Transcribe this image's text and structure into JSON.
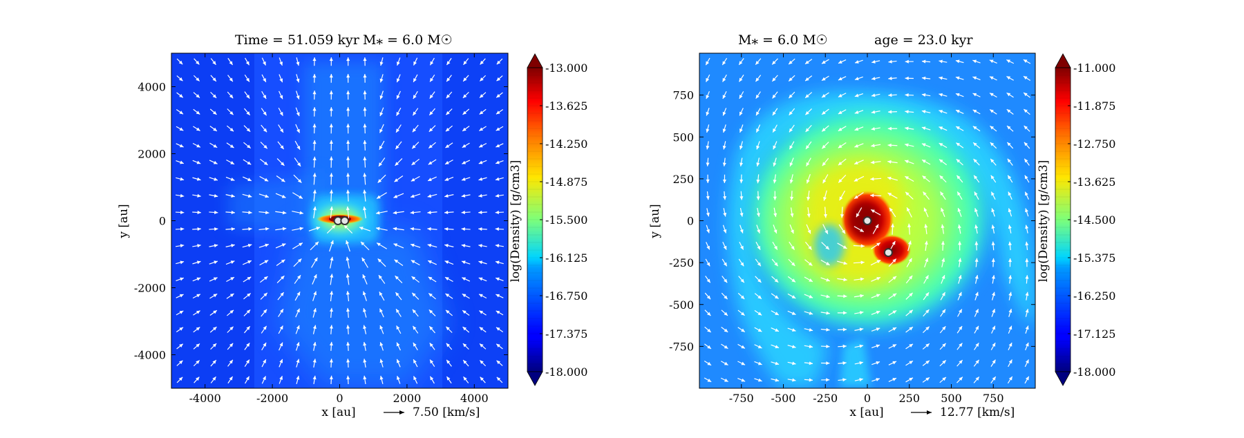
{
  "chart_data": [
    {
      "type": "heatmap",
      "title_left": "Time = 51.059 kyr",
      "title_right": "M$_*$ = 6.0 M$_\\odot$",
      "title_left_text": "Time = 51.059 kyr",
      "title_right_text": "M⁎ = 6.0 M☉",
      "xlabel": "x [au]",
      "ylabel": "y [au]",
      "xlim": [
        -5000,
        5000
      ],
      "ylim": [
        -5000,
        5000
      ],
      "xticks": [
        -4000,
        -2000,
        0,
        2000,
        4000
      ],
      "xtick_labels": [
        "-4000",
        "-2000",
        "0",
        "2000",
        "4000"
      ],
      "yticks": [
        -4000,
        -2000,
        0,
        2000,
        4000
      ],
      "ytick_labels": [
        "-4000",
        "-2000",
        "0",
        "2000",
        "4000"
      ],
      "colorbar": {
        "label": "log(Density) [g/cm3]",
        "range": [
          -18.0,
          -13.0
        ],
        "ticks": [
          -13.0,
          -13.625,
          -14.25,
          -14.875,
          -15.5,
          -16.125,
          -16.75,
          -17.375,
          -18.0
        ],
        "tick_labels": [
          "-13.000",
          "-13.625",
          "-14.250",
          "-14.875",
          "-15.500",
          "-16.125",
          "-16.750",
          "-17.375",
          "-18.000"
        ],
        "extend": "both",
        "colormap": "jet"
      },
      "velocity_key": {
        "arrow_label": "7.50 [km/s]",
        "value": 7.5
      },
      "sinks": [
        {
          "x": -50,
          "y": 0
        },
        {
          "x": 150,
          "y": 0
        }
      ],
      "vector_field": "infall"
    },
    {
      "type": "heatmap",
      "title_left": "M$_*$ = 6.0 M$_\\odot$",
      "title_right": "age = 23.0 kyr",
      "title_left_text": "M⁎ = 6.0 M☉",
      "title_right_text": "age = 23.0 kyr",
      "xlabel": "x [au]",
      "ylabel": "y [au]",
      "xlim": [
        -1000,
        1000
      ],
      "ylim": [
        -1000,
        1000
      ],
      "xticks": [
        -750,
        -500,
        -250,
        0,
        250,
        500,
        750
      ],
      "xtick_labels": [
        "-750",
        "-500",
        "-250",
        "0",
        "250",
        "500",
        "750"
      ],
      "yticks": [
        -750,
        -500,
        -250,
        0,
        250,
        500,
        750
      ],
      "ytick_labels": [
        "-750",
        "-500",
        "-250",
        "0",
        "250",
        "500",
        "750"
      ],
      "colorbar": {
        "label": "log(Density) [g/cm3]",
        "range": [
          -18.0,
          -11.0
        ],
        "ticks": [
          -11.0,
          -11.875,
          -12.75,
          -13.625,
          -14.5,
          -15.375,
          -16.25,
          -17.125,
          -18.0
        ],
        "tick_labels": [
          "-11.000",
          "-11.875",
          "-12.750",
          "-13.625",
          "-14.500",
          "-15.375",
          "-16.250",
          "-17.125",
          "-18.000"
        ],
        "extend": "both",
        "colormap": "jet"
      },
      "velocity_key": {
        "arrow_label": "12.77 [km/s]",
        "value": 12.77
      },
      "sinks": [
        {
          "x": 0,
          "y": 0
        },
        {
          "x": 125,
          "y": -190
        }
      ],
      "vector_field": "rotation"
    }
  ],
  "colors": {
    "background": "#ffffff",
    "arrow": "#ffffff",
    "sink_fill": "#e6e6e6",
    "sink_edge": "#333333"
  }
}
